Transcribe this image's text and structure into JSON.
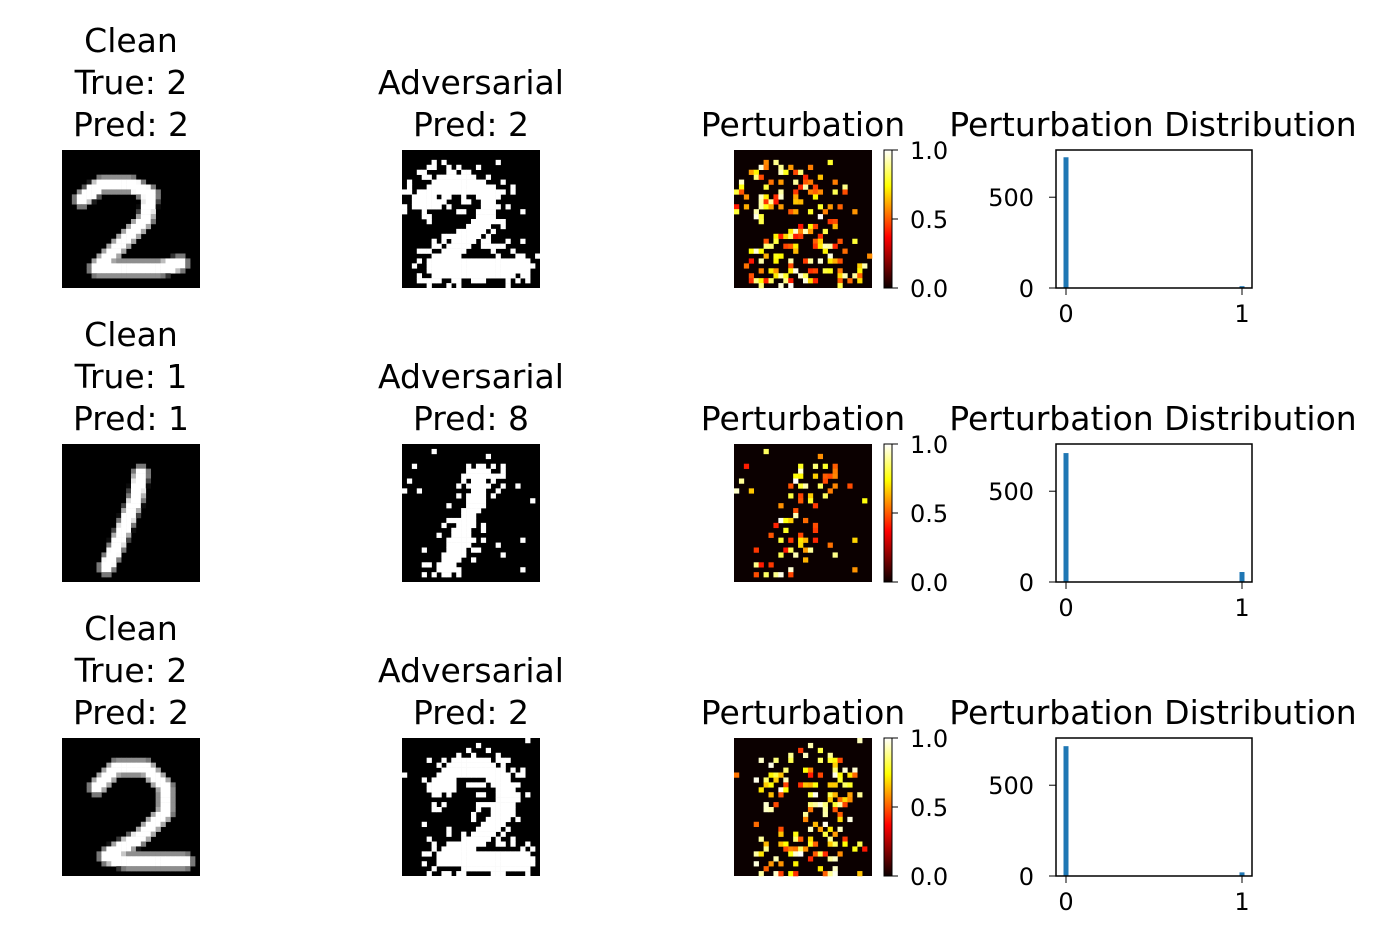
{
  "chart_data": {
    "type": "image-grid",
    "colormap": "hot",
    "rows": [
      {
        "clean": {
          "title": "Clean",
          "true_label": "True: 2",
          "pred_label": "Pred: 2",
          "digit": "2"
        },
        "adversarial": {
          "title": "Adversarial",
          "pred_label": "Pred: 2",
          "digit": "2"
        },
        "perturbation": {
          "title": "Perturbation",
          "colorbar_ticks": [
            "0.0",
            "0.5",
            "1.0"
          ],
          "vmin": 0,
          "vmax": 1
        },
        "histogram": {
          "title": "Perturbation Distribution",
          "type": "bar",
          "x": [
            0,
            1
          ],
          "values": [
            720,
            10
          ],
          "xticks": [
            "0",
            "1"
          ],
          "yticks": [
            "0",
            "500"
          ],
          "ylim": [
            0,
            760
          ],
          "color": "#1f77b4"
        }
      },
      {
        "clean": {
          "title": "Clean",
          "true_label": "True: 1",
          "pred_label": "Pred: 1",
          "digit": "1"
        },
        "adversarial": {
          "title": "Adversarial",
          "pred_label": "Pred: 8",
          "digit": "1"
        },
        "perturbation": {
          "title": "Perturbation",
          "colorbar_ticks": [
            "0.0",
            "0.5",
            "1.0"
          ],
          "vmin": 0,
          "vmax": 1
        },
        "histogram": {
          "title": "Perturbation Distribution",
          "type": "bar",
          "x": [
            0,
            1
          ],
          "values": [
            710,
            55
          ],
          "xticks": [
            "0",
            "1"
          ],
          "yticks": [
            "0",
            "500"
          ],
          "ylim": [
            0,
            760
          ],
          "color": "#1f77b4"
        }
      },
      {
        "clean": {
          "title": "Clean",
          "true_label": "True: 2",
          "pred_label": "Pred: 2",
          "digit": "2b"
        },
        "adversarial": {
          "title": "Adversarial",
          "pred_label": "Pred: 2",
          "digit": "2b"
        },
        "perturbation": {
          "title": "Perturbation",
          "colorbar_ticks": [
            "0.0",
            "0.5",
            "1.0"
          ],
          "vmin": 0,
          "vmax": 1
        },
        "histogram": {
          "title": "Perturbation Distribution",
          "type": "bar",
          "x": [
            0,
            1
          ],
          "values": [
            715,
            20
          ],
          "xticks": [
            "0",
            "1"
          ],
          "yticks": [
            "0",
            "500"
          ],
          "ylim": [
            0,
            760
          ],
          "color": "#1f77b4"
        }
      }
    ]
  }
}
